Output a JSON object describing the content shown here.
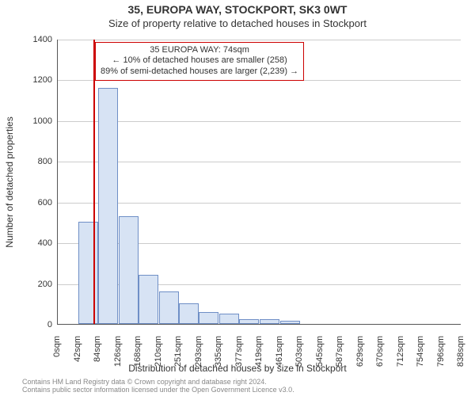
{
  "header": {
    "address_line": "35, EUROPA WAY, STOCKPORT, SK3 0WT",
    "subtitle": "Size of property relative to detached houses in Stockport"
  },
  "chart": {
    "type": "histogram",
    "ylabel": "Number of detached properties",
    "xlabel": "Distribution of detached houses by size in Stockport",
    "background_color": "#ffffff",
    "grid_color": "#cccccc",
    "axis_color": "#555555",
    "bar_fill": "#d7e3f4",
    "bar_stroke": "#6f8fc6",
    "marker_color": "#cc0000",
    "ylim": [
      0,
      1400
    ],
    "ytick_step": 200,
    "yticks": [
      0,
      200,
      400,
      600,
      800,
      1000,
      1200,
      1400
    ],
    "xticks": [
      "0sqm",
      "42sqm",
      "84sqm",
      "126sqm",
      "168sqm",
      "210sqm",
      "251sqm",
      "293sqm",
      "335sqm",
      "377sqm",
      "419sqm",
      "461sqm",
      "503sqm",
      "545sqm",
      "587sqm",
      "629sqm",
      "670sqm",
      "712sqm",
      "754sqm",
      "796sqm",
      "838sqm"
    ],
    "bin_starts_sqm": [
      0,
      42,
      84,
      126,
      168,
      210,
      251,
      293,
      335,
      377,
      419,
      461,
      503,
      545,
      587,
      629,
      670,
      712,
      754,
      796
    ],
    "bin_width_sqm": 42,
    "values": [
      0,
      500,
      1160,
      530,
      240,
      160,
      100,
      60,
      50,
      25,
      25,
      15,
      0,
      0,
      0,
      0,
      0,
      0,
      0,
      0
    ],
    "xmax_sqm": 838,
    "marker_sqm": 74,
    "label_fontsize": 12,
    "tick_fontsize": 11,
    "title_fontsize": 14,
    "bar_border_width": 1
  },
  "annotation": {
    "lines": [
      "35 EUROPA WAY: 74sqm",
      "← 10% of detached houses are smaller (258)",
      "89% of semi-detached houses are larger (2,239) →"
    ],
    "border_color": "#cc0000",
    "border_width": 1,
    "text_color": "#333333",
    "left_sqm": 74,
    "top_value": 1390
  },
  "footer": {
    "line1": "Contains HM Land Registry data © Crown copyright and database right 2024.",
    "line2": "Contains public sector information licensed under the Open Government Licence v3.0."
  }
}
